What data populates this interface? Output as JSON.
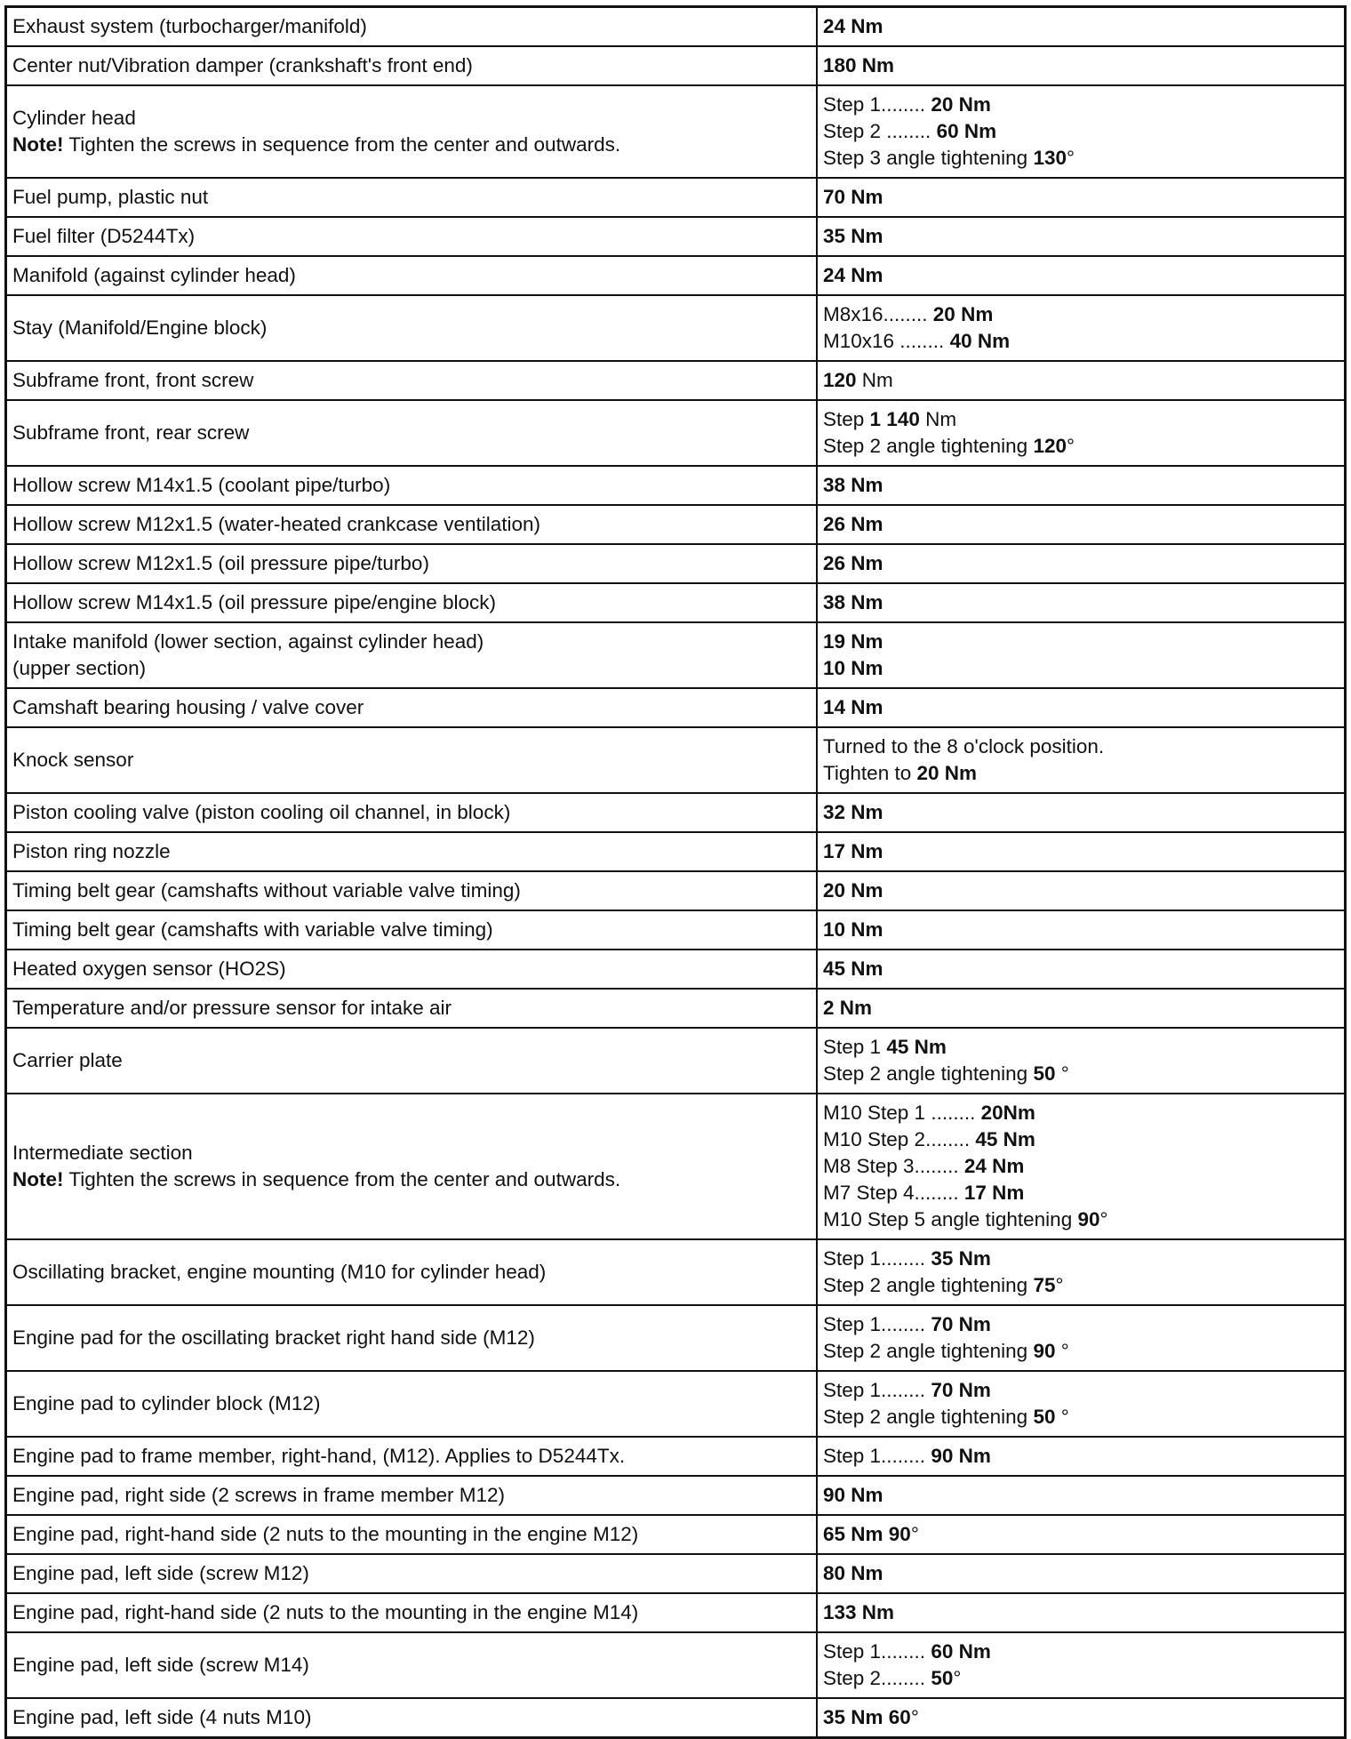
{
  "rows": [
    {
      "item": [
        [
          {
            "t": "Exhaust system (turbocharger/manifold)"
          }
        ]
      ],
      "torque": [
        [
          {
            "t": "24 Nm",
            "b": true
          }
        ]
      ]
    },
    {
      "item": [
        [
          {
            "t": "Center nut/Vibration damper (crankshaft's front end)"
          }
        ]
      ],
      "torque": [
        [
          {
            "t": "180 Nm",
            "b": true
          }
        ]
      ]
    },
    {
      "item": [
        [
          {
            "t": "Cylinder head"
          }
        ],
        [
          {
            "t": "Note!",
            "b": true
          },
          {
            "t": " Tighten the screws in sequence from the center and outwards."
          }
        ]
      ],
      "torque": [
        [
          {
            "t": "Step 1........ "
          },
          {
            "t": "20 Nm",
            "b": true
          }
        ],
        [
          {
            "t": "Step 2 ........ "
          },
          {
            "t": "60 Nm",
            "b": true
          }
        ],
        [
          {
            "t": "Step 3 angle tightening "
          },
          {
            "t": "130",
            "b": true
          },
          {
            "t": "°"
          }
        ]
      ]
    },
    {
      "item": [
        [
          {
            "t": "Fuel pump, plastic nut"
          }
        ]
      ],
      "torque": [
        [
          {
            "t": "70 Nm",
            "b": true
          }
        ]
      ]
    },
    {
      "item": [
        [
          {
            "t": "Fuel filter (D5244Tx)"
          }
        ]
      ],
      "torque": [
        [
          {
            "t": "35 Nm",
            "b": true
          }
        ]
      ]
    },
    {
      "item": [
        [
          {
            "t": "Manifold (against cylinder head)"
          }
        ]
      ],
      "torque": [
        [
          {
            "t": "24 Nm",
            "b": true
          }
        ]
      ]
    },
    {
      "item": [
        [
          {
            "t": "Stay (Manifold/Engine block)"
          }
        ]
      ],
      "torque": [
        [
          {
            "t": "M8x16........ "
          },
          {
            "t": "20 Nm",
            "b": true
          }
        ],
        [
          {
            "t": "M10x16 ........ "
          },
          {
            "t": "40 Nm",
            "b": true
          }
        ]
      ]
    },
    {
      "item": [
        [
          {
            "t": "Subframe front, front screw"
          }
        ]
      ],
      "torque": [
        [
          {
            "t": "120",
            "b": true
          },
          {
            "t": " Nm"
          }
        ]
      ]
    },
    {
      "item": [
        [
          {
            "t": "Subframe front, rear screw"
          }
        ]
      ],
      "torque": [
        [
          {
            "t": "Step "
          },
          {
            "t": "1 140",
            "b": true
          },
          {
            "t": " Nm"
          }
        ],
        [
          {
            "t": "Step 2 angle tightening "
          },
          {
            "t": "120",
            "b": true
          },
          {
            "t": "°"
          }
        ]
      ]
    },
    {
      "item": [
        [
          {
            "t": "Hollow screw M14x1.5 (coolant pipe/turbo)"
          }
        ]
      ],
      "torque": [
        [
          {
            "t": "38 Nm",
            "b": true
          }
        ]
      ]
    },
    {
      "item": [
        [
          {
            "t": "Hollow screw M12x1.5 (water-heated crankcase ventilation)"
          }
        ]
      ],
      "torque": [
        [
          {
            "t": "26 Nm",
            "b": true
          }
        ]
      ]
    },
    {
      "item": [
        [
          {
            "t": "Hollow screw M12x1.5 (oil pressure pipe/turbo)"
          }
        ]
      ],
      "torque": [
        [
          {
            "t": "26 Nm",
            "b": true
          }
        ]
      ]
    },
    {
      "item": [
        [
          {
            "t": "Hollow screw M14x1.5 (oil pressure pipe/engine block)"
          }
        ]
      ],
      "torque": [
        [
          {
            "t": "38 Nm",
            "b": true
          }
        ]
      ]
    },
    {
      "item": [
        [
          {
            "t": "Intake manifold (lower section, against cylinder head)"
          }
        ],
        [
          {
            "t": "(upper section)"
          }
        ]
      ],
      "torque": [
        [
          {
            "t": "19 Nm",
            "b": true
          }
        ],
        [
          {
            "t": "10 Nm",
            "b": true
          }
        ]
      ]
    },
    {
      "item": [
        [
          {
            "t": "Camshaft bearing housing / valve cover"
          }
        ]
      ],
      "torque": [
        [
          {
            "t": "14 Nm",
            "b": true
          }
        ]
      ]
    },
    {
      "item": [
        [
          {
            "t": "Knock sensor"
          }
        ]
      ],
      "torque": [
        [
          {
            "t": "Turned to the 8 o'clock position."
          }
        ],
        [
          {
            "t": "Tighten to "
          },
          {
            "t": "20 Nm",
            "b": true
          }
        ]
      ]
    },
    {
      "item": [
        [
          {
            "t": "Piston cooling valve (piston cooling oil channel, in block)"
          }
        ]
      ],
      "torque": [
        [
          {
            "t": "32 Nm",
            "b": true
          }
        ]
      ]
    },
    {
      "item": [
        [
          {
            "t": "Piston ring nozzle"
          }
        ]
      ],
      "torque": [
        [
          {
            "t": "17 Nm",
            "b": true
          }
        ]
      ]
    },
    {
      "item": [
        [
          {
            "t": "Timing belt gear (camshafts without variable valve timing)"
          }
        ]
      ],
      "torque": [
        [
          {
            "t": "20 Nm",
            "b": true
          }
        ]
      ]
    },
    {
      "item": [
        [
          {
            "t": "Timing belt gear (camshafts with variable valve timing)"
          }
        ]
      ],
      "torque": [
        [
          {
            "t": "10 Nm",
            "b": true
          }
        ]
      ]
    },
    {
      "item": [
        [
          {
            "t": "Heated oxygen sensor (HO2S)"
          }
        ]
      ],
      "torque": [
        [
          {
            "t": "45 Nm",
            "b": true
          }
        ]
      ]
    },
    {
      "item": [
        [
          {
            "t": "Temperature and/or pressure sensor for intake air"
          }
        ]
      ],
      "torque": [
        [
          {
            "t": "2 Nm",
            "b": true
          }
        ]
      ]
    },
    {
      "item": [
        [
          {
            "t": "Carrier plate"
          }
        ]
      ],
      "torque": [
        [
          {
            "t": "Step 1 "
          },
          {
            "t": "45 Nm",
            "b": true
          }
        ],
        [
          {
            "t": "Step 2 angle tightening "
          },
          {
            "t": "50",
            "b": true
          },
          {
            "t": " °"
          }
        ]
      ]
    },
    {
      "item": [
        [
          {
            "t": "Intermediate section"
          }
        ],
        [
          {
            "t": "Note!",
            "b": true
          },
          {
            "t": " Tighten the screws in sequence from the center and outwards."
          }
        ]
      ],
      "torque": [
        [
          {
            "t": "M10 Step 1 ........ "
          },
          {
            "t": "20Nm",
            "b": true
          }
        ],
        [
          {
            "t": "M10 Step 2........ "
          },
          {
            "t": "45 Nm",
            "b": true
          }
        ],
        [
          {
            "t": "M8 Step 3........ "
          },
          {
            "t": "24 Nm",
            "b": true
          }
        ],
        [
          {
            "t": "M7 Step 4........ "
          },
          {
            "t": "17 Nm",
            "b": true
          }
        ],
        [
          {
            "t": "M10 Step 5 angle tightening "
          },
          {
            "t": "90",
            "b": true
          },
          {
            "t": "°"
          }
        ]
      ]
    },
    {
      "item": [
        [
          {
            "t": "Oscillating bracket, engine mounting (M10 for cylinder head)"
          }
        ]
      ],
      "torque": [
        [
          {
            "t": "Step 1........ "
          },
          {
            "t": "35 Nm",
            "b": true
          }
        ],
        [
          {
            "t": "Step 2 angle tightening "
          },
          {
            "t": "75",
            "b": true
          },
          {
            "t": "°"
          }
        ]
      ]
    },
    {
      "item": [
        [
          {
            "t": "Engine pad for the oscillating bracket right hand side (M12)"
          }
        ]
      ],
      "torque": [
        [
          {
            "t": "Step 1........ "
          },
          {
            "t": "70 Nm",
            "b": true
          }
        ],
        [
          {
            "t": "Step 2 angle tightening "
          },
          {
            "t": "90",
            "b": true
          },
          {
            "t": " °"
          }
        ]
      ]
    },
    {
      "item": [
        [
          {
            "t": "Engine pad to cylinder block (M12)"
          }
        ]
      ],
      "torque": [
        [
          {
            "t": "Step 1........ "
          },
          {
            "t": "70 Nm",
            "b": true
          }
        ],
        [
          {
            "t": "Step 2 angle tightening "
          },
          {
            "t": "50",
            "b": true
          },
          {
            "t": " °"
          }
        ]
      ]
    },
    {
      "item": [
        [
          {
            "t": "Engine pad to frame member, right-hand, (M12). Applies to D5244Tx."
          }
        ]
      ],
      "torque": [
        [
          {
            "t": "Step 1........ "
          },
          {
            "t": "90 Nm",
            "b": true
          }
        ]
      ]
    },
    {
      "item": [
        [
          {
            "t": "Engine pad, right side (2 screws in frame member M12)"
          }
        ]
      ],
      "torque": [
        [
          {
            "t": "90 Nm",
            "b": true
          }
        ]
      ]
    },
    {
      "item": [
        [
          {
            "t": "Engine pad, right-hand side (2 nuts to the mounting in the engine M12)"
          }
        ]
      ],
      "torque": [
        [
          {
            "t": "65 Nm 90",
            "b": true
          },
          {
            "t": "°"
          }
        ]
      ]
    },
    {
      "item": [
        [
          {
            "t": "Engine pad, left side (screw M12)"
          }
        ]
      ],
      "torque": [
        [
          {
            "t": "80 Nm",
            "b": true
          }
        ]
      ]
    },
    {
      "item": [
        [
          {
            "t": "Engine pad, right-hand side (2 nuts to the mounting in the engine M14)"
          }
        ]
      ],
      "torque": [
        [
          {
            "t": "133 Nm",
            "b": true
          }
        ]
      ]
    },
    {
      "item": [
        [
          {
            "t": "Engine pad, left side (screw M14)"
          }
        ]
      ],
      "torque": [
        [
          {
            "t": "Step 1........ "
          },
          {
            "t": "60 Nm",
            "b": true
          }
        ],
        [
          {
            "t": "Step 2........ "
          },
          {
            "t": "50",
            "b": true
          },
          {
            "t": "°"
          }
        ]
      ]
    },
    {
      "item": [
        [
          {
            "t": "Engine pad, left side (4 nuts M10)"
          }
        ]
      ],
      "torque": [
        [
          {
            "t": "35 Nm 60",
            "b": true
          },
          {
            "t": "°"
          }
        ]
      ]
    }
  ]
}
